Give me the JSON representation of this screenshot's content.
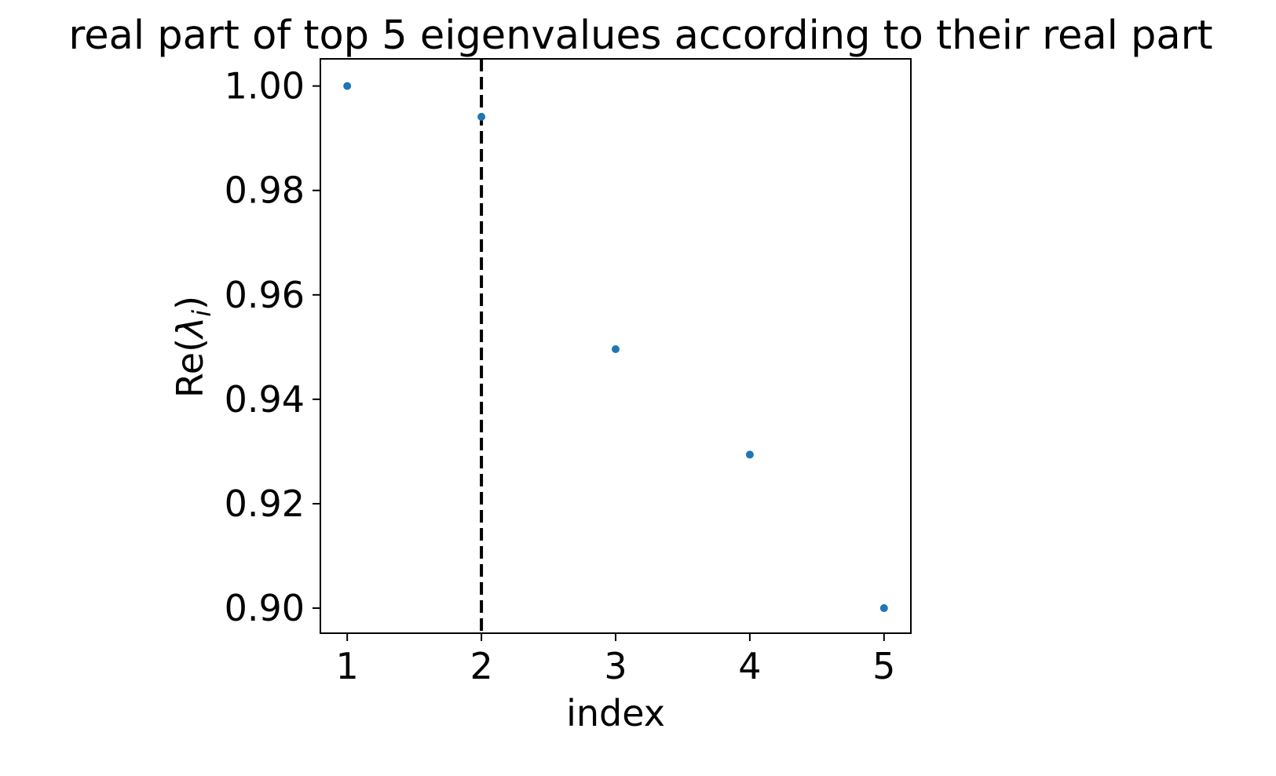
{
  "chart_data": {
    "type": "scatter",
    "title": "real part of top 5 eigenvalues according to their real part",
    "xlabel": "index",
    "ylabel_prefix": "Re(",
    "ylabel_symbol": "λ",
    "ylabel_subscript": "i",
    "ylabel_suffix": ")",
    "x": [
      1,
      2,
      3,
      4,
      5
    ],
    "y": [
      1.0,
      0.9941,
      0.9496,
      0.9294,
      0.9
    ],
    "xlim": [
      0.8,
      5.2
    ],
    "ylim": [
      0.8952,
      1.0052
    ],
    "xticks": [
      1,
      2,
      3,
      4,
      5
    ],
    "xtick_labels": [
      "1",
      "2",
      "3",
      "4",
      "5"
    ],
    "yticks": [
      0.9,
      0.92,
      0.94,
      0.96,
      0.98,
      1.0
    ],
    "ytick_labels": [
      "0.90",
      "0.92",
      "0.94",
      "0.96",
      "0.98",
      "1.00"
    ],
    "vline_x": 2,
    "vline_style": "dashed",
    "grid": false,
    "marker_color": "#1f77b4",
    "vline_color": "#000000"
  }
}
